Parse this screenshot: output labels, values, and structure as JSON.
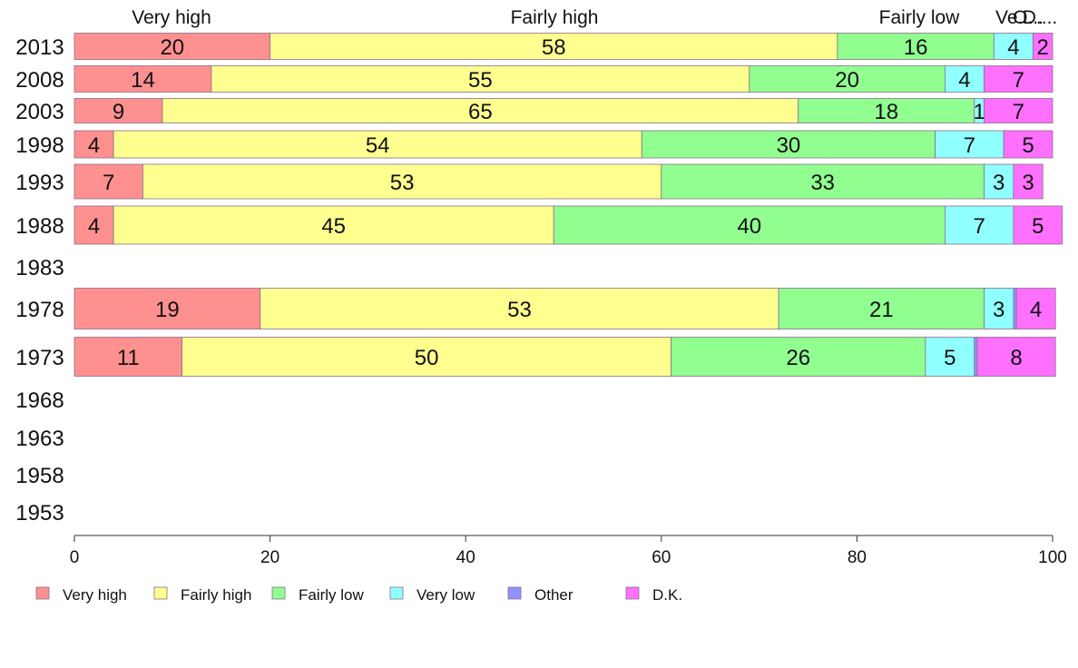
{
  "chart_data": {
    "type": "bar",
    "orientation": "horizontal",
    "stacked": true,
    "categories": [
      "2013",
      "2008",
      "2003",
      "1998",
      "1993",
      "1988",
      "1983",
      "1978",
      "1973",
      "1968",
      "1963",
      "1958",
      "1953"
    ],
    "series": [
      {
        "name": "Very high",
        "color": "#ff9090",
        "values": [
          20,
          14,
          9,
          4,
          7,
          4,
          null,
          19,
          11,
          null,
          null,
          null,
          null
        ]
      },
      {
        "name": "Fairly high",
        "color": "#ffff90",
        "values": [
          58,
          55,
          65,
          54,
          53,
          45,
          null,
          53,
          50,
          null,
          null,
          null,
          null
        ]
      },
      {
        "name": "Fairly low",
        "color": "#90ff90",
        "values": [
          16,
          20,
          18,
          30,
          33,
          40,
          null,
          21,
          26,
          null,
          null,
          null,
          null
        ]
      },
      {
        "name": "Very low",
        "color": "#90ffff",
        "values": [
          4,
          4,
          1,
          7,
          3,
          7,
          null,
          3,
          5,
          null,
          null,
          null,
          null
        ]
      },
      {
        "name": "Other",
        "color": "#9090ff",
        "values": [
          0,
          0,
          0,
          0,
          0,
          0,
          null,
          0.3,
          0.3,
          null,
          null,
          null,
          null
        ]
      },
      {
        "name": "D.K.",
        "color": "#ff70ff",
        "values": [
          2,
          7,
          7,
          5,
          3,
          5,
          null,
          4,
          8,
          null,
          null,
          null,
          null
        ]
      }
    ],
    "top_labels": [
      "Very high",
      "Fairly high",
      "Fairly low",
      "Ve...",
      "O...",
      "D...."
    ],
    "xlim": [
      0,
      100
    ],
    "xticks": [
      0,
      20,
      40,
      60,
      80,
      100
    ],
    "grid": false,
    "legend_position": "bottom"
  }
}
